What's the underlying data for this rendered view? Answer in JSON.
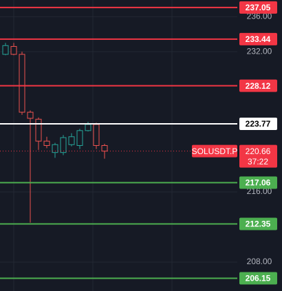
{
  "chart_data": {
    "type": "candlestick",
    "open": [
      231.7,
      232.6,
      231.7,
      225.1,
      224.3,
      221.8,
      220.5,
      220.5,
      221.4,
      221.3,
      223.0,
      223.7,
      221.3
    ],
    "high": [
      233.0,
      233.0,
      232.0,
      225.3,
      224.5,
      222.3,
      221.6,
      222.5,
      222.7,
      223.2,
      224.0,
      223.9,
      221.5
    ],
    "low": [
      231.6,
      231.6,
      224.8,
      212.5,
      220.8,
      221.0,
      219.9,
      220.2,
      221.2,
      220.9,
      222.9,
      220.9,
      219.8
    ],
    "close": [
      232.7,
      231.7,
      225.1,
      224.4,
      221.8,
      221.3,
      221.4,
      222.2,
      222.3,
      223.0,
      223.7,
      221.3,
      220.66
    ],
    "up_color": "#26a69a",
    "down_color": "#ef5350",
    "ylim": [
      204.7,
      237.9
    ],
    "yticks": [
      {
        "value": 236,
        "label": "236.00"
      },
      {
        "value": 232,
        "label": "232.00"
      },
      {
        "value": 216,
        "label": "216.00"
      },
      {
        "value": 208,
        "label": "208.00"
      }
    ],
    "levels": [
      {
        "value": 237.05,
        "color": "#f23645"
      },
      {
        "value": 233.44,
        "color": "#f23645"
      },
      {
        "value": 228.12,
        "color": "#f23645"
      },
      {
        "value": 223.77,
        "color": "#ffffff"
      },
      {
        "value": 217.06,
        "color": "#4caf50"
      },
      {
        "value": 212.35,
        "color": "#4caf50"
      },
      {
        "value": 206.15,
        "color": "#4caf50"
      }
    ],
    "price": {
      "value": 220.66,
      "symbol": "SOLUSDT.P",
      "countdown": "37:22",
      "color": "#f23645"
    }
  }
}
